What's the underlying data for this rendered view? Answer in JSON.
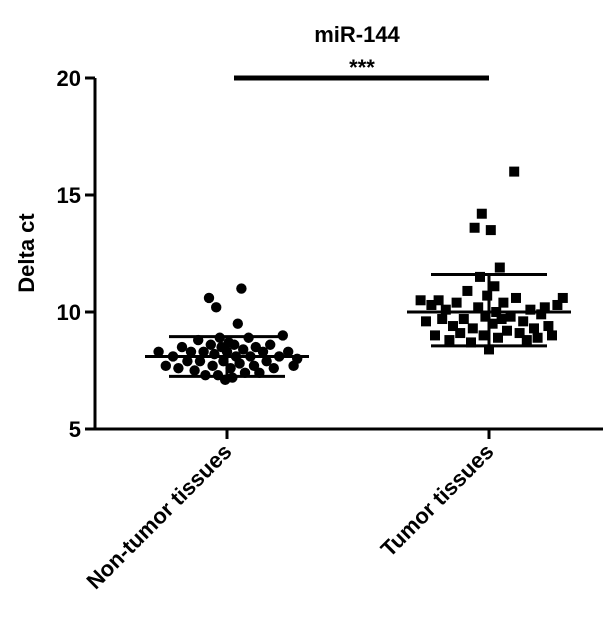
{
  "chart_data": {
    "type": "scatter",
    "title": "miR-144",
    "ylabel": "Delta ct",
    "xlabel": "",
    "ylim": [
      5,
      20
    ],
    "yticks": [
      5,
      10,
      15,
      20
    ],
    "grid": false,
    "categories": [
      "Non-tumor tissues",
      "Tumor tissues"
    ],
    "significance": {
      "label": "***",
      "between": [
        0,
        1
      ],
      "y": 20
    },
    "series": [
      {
        "category": "Non-tumor tissues",
        "marker": "circle",
        "mean": 8.1,
        "sd_upper": 8.95,
        "sd_lower": 7.25,
        "points": [
          {
            "x": -0.38,
            "y": 8.3
          },
          {
            "x": -0.34,
            "y": 7.7
          },
          {
            "x": -0.3,
            "y": 8.1
          },
          {
            "x": -0.27,
            "y": 7.6
          },
          {
            "x": -0.25,
            "y": 8.5
          },
          {
            "x": -0.22,
            "y": 7.9
          },
          {
            "x": -0.2,
            "y": 8.3
          },
          {
            "x": -0.18,
            "y": 7.5
          },
          {
            "x": -0.16,
            "y": 8.8
          },
          {
            "x": -0.15,
            "y": 7.9
          },
          {
            "x": -0.13,
            "y": 8.3
          },
          {
            "x": -0.12,
            "y": 7.3
          },
          {
            "x": -0.1,
            "y": 10.6
          },
          {
            "x": -0.09,
            "y": 8.6
          },
          {
            "x": -0.08,
            "y": 7.7
          },
          {
            "x": -0.07,
            "y": 8.2
          },
          {
            "x": -0.06,
            "y": 10.2
          },
          {
            "x": -0.05,
            "y": 7.3
          },
          {
            "x": -0.04,
            "y": 8.9
          },
          {
            "x": -0.03,
            "y": 8.5
          },
          {
            "x": -0.02,
            "y": 7.9
          },
          {
            "x": -0.01,
            "y": 7.1
          },
          {
            "x": 0.0,
            "y": 8.3
          },
          {
            "x": 0.01,
            "y": 8.7
          },
          {
            "x": 0.02,
            "y": 7.6
          },
          {
            "x": 0.03,
            "y": 7.2
          },
          {
            "x": 0.04,
            "y": 8.6
          },
          {
            "x": 0.05,
            "y": 8.1
          },
          {
            "x": 0.06,
            "y": 9.5
          },
          {
            "x": 0.07,
            "y": 7.8
          },
          {
            "x": 0.08,
            "y": 11.0
          },
          {
            "x": 0.09,
            "y": 8.4
          },
          {
            "x": 0.1,
            "y": 7.4
          },
          {
            "x": 0.12,
            "y": 8.9
          },
          {
            "x": 0.13,
            "y": 8.1
          },
          {
            "x": 0.15,
            "y": 7.7
          },
          {
            "x": 0.16,
            "y": 8.5
          },
          {
            "x": 0.18,
            "y": 7.4
          },
          {
            "x": 0.2,
            "y": 8.3
          },
          {
            "x": 0.22,
            "y": 7.9
          },
          {
            "x": 0.24,
            "y": 8.6
          },
          {
            "x": 0.26,
            "y": 7.6
          },
          {
            "x": 0.29,
            "y": 8.1
          },
          {
            "x": 0.31,
            "y": 9.0
          },
          {
            "x": 0.34,
            "y": 8.3
          },
          {
            "x": 0.37,
            "y": 7.7
          },
          {
            "x": 0.39,
            "y": 8.0
          }
        ]
      },
      {
        "category": "Tumor tissues",
        "marker": "square",
        "mean": 10.0,
        "sd_upper": 11.6,
        "sd_lower": 8.55,
        "points": [
          {
            "x": -0.38,
            "y": 10.5
          },
          {
            "x": -0.35,
            "y": 9.6
          },
          {
            "x": -0.32,
            "y": 10.3
          },
          {
            "x": -0.3,
            "y": 9.0
          },
          {
            "x": -0.28,
            "y": 10.5
          },
          {
            "x": -0.26,
            "y": 9.7
          },
          {
            "x": -0.24,
            "y": 10.1
          },
          {
            "x": -0.22,
            "y": 8.8
          },
          {
            "x": -0.2,
            "y": 9.4
          },
          {
            "x": -0.18,
            "y": 10.4
          },
          {
            "x": -0.16,
            "y": 9.1
          },
          {
            "x": -0.14,
            "y": 9.7
          },
          {
            "x": -0.12,
            "y": 10.9
          },
          {
            "x": -0.1,
            "y": 8.7
          },
          {
            "x": -0.09,
            "y": 9.3
          },
          {
            "x": -0.08,
            "y": 13.6
          },
          {
            "x": -0.06,
            "y": 10.2
          },
          {
            "x": -0.05,
            "y": 11.5
          },
          {
            "x": -0.04,
            "y": 14.2
          },
          {
            "x": -0.03,
            "y": 9.0
          },
          {
            "x": -0.02,
            "y": 9.8
          },
          {
            "x": -0.01,
            "y": 10.7
          },
          {
            "x": 0.0,
            "y": 8.4
          },
          {
            "x": 0.01,
            "y": 13.5
          },
          {
            "x": 0.02,
            "y": 9.5
          },
          {
            "x": 0.03,
            "y": 11.1
          },
          {
            "x": 0.04,
            "y": 10.0
          },
          {
            "x": 0.05,
            "y": 8.9
          },
          {
            "x": 0.06,
            "y": 11.9
          },
          {
            "x": 0.07,
            "y": 9.7
          },
          {
            "x": 0.08,
            "y": 10.4
          },
          {
            "x": 0.1,
            "y": 9.2
          },
          {
            "x": 0.12,
            "y": 9.8
          },
          {
            "x": 0.14,
            "y": 16.0
          },
          {
            "x": 0.15,
            "y": 10.6
          },
          {
            "x": 0.17,
            "y": 9.1
          },
          {
            "x": 0.19,
            "y": 9.6
          },
          {
            "x": 0.21,
            "y": 8.8
          },
          {
            "x": 0.23,
            "y": 10.1
          },
          {
            "x": 0.25,
            "y": 9.3
          },
          {
            "x": 0.27,
            "y": 8.9
          },
          {
            "x": 0.29,
            "y": 9.9
          },
          {
            "x": 0.31,
            "y": 10.2
          },
          {
            "x": 0.33,
            "y": 9.4
          },
          {
            "x": 0.35,
            "y": 9.0
          },
          {
            "x": 0.38,
            "y": 10.3
          },
          {
            "x": 0.41,
            "y": 10.6
          }
        ]
      }
    ]
  }
}
